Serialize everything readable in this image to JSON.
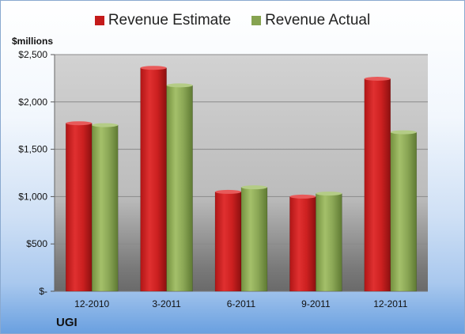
{
  "chart_data": {
    "type": "bar",
    "categories": [
      "12-2010",
      "3-2011",
      "6-2011",
      "9-2011",
      "12-2011"
    ],
    "series": [
      {
        "name": "Revenue Estimate",
        "values": [
          1775,
          2360,
          1050,
          1000,
          2245
        ],
        "color": "#d01c1c"
      },
      {
        "name": "Revenue Actual",
        "values": [
          1755,
          2175,
          1098,
          1032,
          1680
        ],
        "color": "#8fad5a"
      }
    ],
    "ylabel": "$millions",
    "ylim": [
      0,
      2500
    ],
    "y_ticks": [
      0,
      500,
      1000,
      1500,
      2000,
      2500
    ],
    "y_tick_labels": [
      "$-",
      "$500",
      "$1,000",
      "$1,500",
      "$2,000",
      "$2,500"
    ],
    "legend_position": "top",
    "grid": true,
    "plot_background": "#bdbdbd"
  },
  "company": "UGI"
}
